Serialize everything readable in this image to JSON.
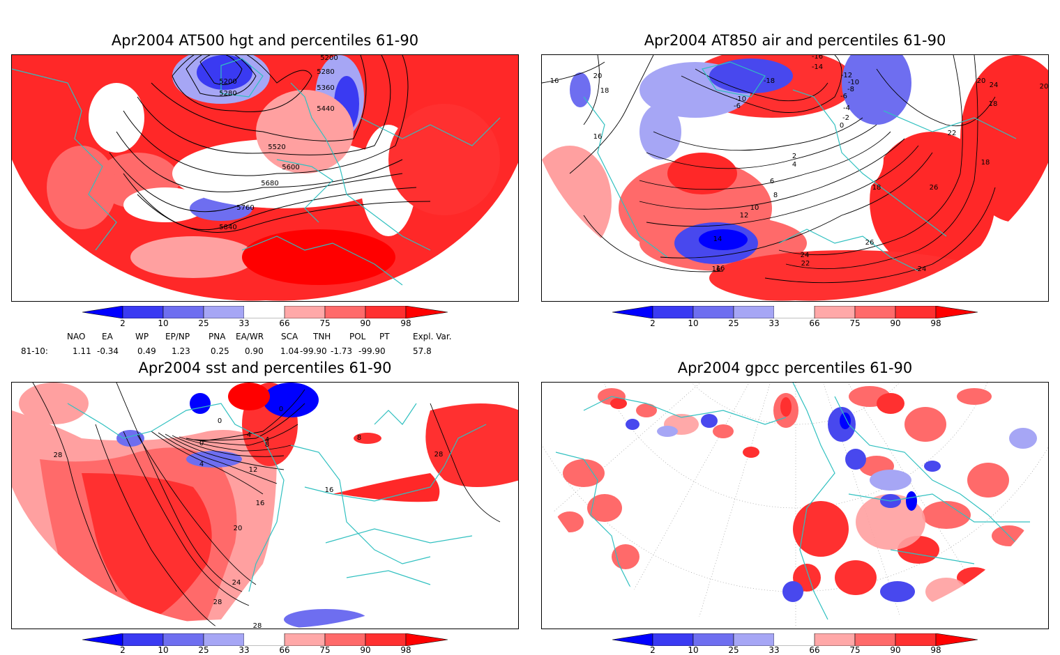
{
  "panels": [
    {
      "id": "p1",
      "title": "Apr2004 AT500 hgt and percentiles 61-90",
      "contour_labels": [
        "5200",
        "5280",
        "5360",
        "5440",
        "5200",
        "5280",
        "5520",
        "5600",
        "5680",
        "5760",
        "5840"
      ]
    },
    {
      "id": "p2",
      "title": "Apr2004 AT850 air and percentiles 61-90",
      "contour_labels": [
        "16",
        "20",
        "18",
        "16",
        "-16",
        "-14",
        "-12",
        "-10",
        "-8",
        "-6",
        "-4",
        "-2",
        "0",
        "-18",
        "-10",
        "-6",
        "2",
        "4",
        "6",
        "8",
        "10",
        "12",
        "14",
        "16",
        "18",
        "22",
        "24",
        "26",
        "24",
        "22",
        "20",
        "24",
        "18",
        "20",
        "18",
        "26",
        "16"
      ]
    },
    {
      "id": "p3",
      "title": "Apr2004 sst and percentiles 61-90",
      "contour_labels": [
        "28",
        "0",
        "0",
        "4",
        "4",
        "8",
        "0",
        "4",
        "12",
        "16",
        "20",
        "24",
        "28",
        "16",
        "8",
        "28",
        "28"
      ]
    },
    {
      "id": "p4",
      "title": "Apr2004 gpcc percentiles 61-90",
      "contour_labels": []
    }
  ],
  "colorbar": {
    "ticks": [
      "2",
      "10",
      "25",
      "33",
      "66",
      "75",
      "90",
      "98"
    ],
    "colors": [
      "#0000ff",
      "#3a3af2",
      "#6e6ef0",
      "#a6a6f5",
      "#ffffff",
      "#ffa8a8",
      "#ff6a6a",
      "#ff3030",
      "#ff0000"
    ]
  },
  "stats": {
    "headers": [
      "NAO",
      "EA",
      "WP",
      "EP/NP",
      "PNA",
      "EA/WR",
      "SCA",
      "TNH",
      "POL",
      "PT",
      "Expl. Var."
    ],
    "row_label": "81-10:",
    "values": [
      "1.11",
      "-0.34",
      "0.49",
      "1.23",
      "0.25",
      "0.90",
      "1.04",
      "-99.90",
      "-1.73",
      "-99.90",
      "57.8"
    ]
  },
  "colors": {
    "coast": "#30c0c0",
    "red": "#ff2828",
    "pink": "#ffa0a0",
    "blue": "#4848ee",
    "lightblue": "#a0a0f5"
  }
}
